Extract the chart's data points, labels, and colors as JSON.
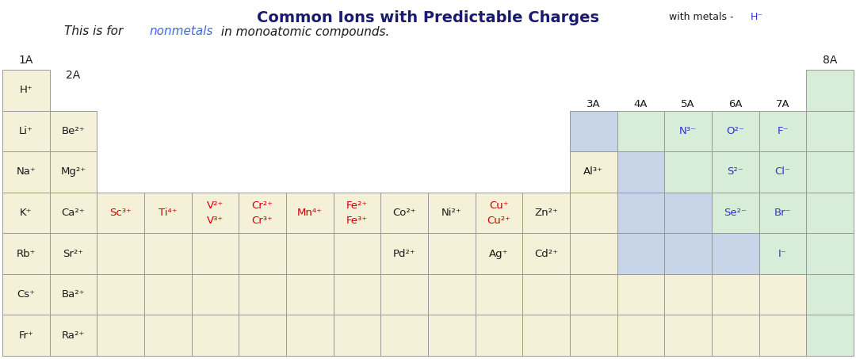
{
  "title": "Common Ions with Predictable Charges",
  "bg_color": "#ffffff",
  "cell_tan": "#F5F0D8",
  "cell_green": "#D8EDD8",
  "cell_blue": "#C8D4E8",
  "cell_edge": "#999999",
  "color_black": "#1a1a1a",
  "color_red": "#CC0000",
  "color_blue": "#3333CC",
  "color_darkblue": "#1a1a6e",
  "color_navy": "#000080",
  "figw": 10.8,
  "figh": 4.53,
  "dpi": 100,
  "ncols": 18,
  "nrows": 8,
  "cells": [
    {
      "col": 0,
      "row": 1,
      "text": "H⁺",
      "color": "tan",
      "text_color": "black"
    },
    {
      "col": 17,
      "row": 1,
      "text": "",
      "color": "green",
      "text_color": "black"
    },
    {
      "col": 0,
      "row": 2,
      "text": "Li⁺",
      "color": "tan",
      "text_color": "black"
    },
    {
      "col": 1,
      "row": 2,
      "text": "Be²⁺",
      "color": "tan",
      "text_color": "black"
    },
    {
      "col": 12,
      "row": 2,
      "text": "",
      "color": "blue",
      "text_color": "black"
    },
    {
      "col": 13,
      "row": 2,
      "text": "",
      "color": "green",
      "text_color": "black"
    },
    {
      "col": 14,
      "row": 2,
      "text": "N³⁻",
      "color": "green",
      "text_color": "blue"
    },
    {
      "col": 15,
      "row": 2,
      "text": "O²⁻",
      "color": "green",
      "text_color": "blue"
    },
    {
      "col": 16,
      "row": 2,
      "text": "F⁻",
      "color": "green",
      "text_color": "blue"
    },
    {
      "col": 17,
      "row": 2,
      "text": "",
      "color": "green",
      "text_color": "black"
    },
    {
      "col": 0,
      "row": 3,
      "text": "Na⁺",
      "color": "tan",
      "text_color": "black"
    },
    {
      "col": 1,
      "row": 3,
      "text": "Mg²⁺",
      "color": "tan",
      "text_color": "black"
    },
    {
      "col": 12,
      "row": 3,
      "text": "Al³⁺",
      "color": "tan",
      "text_color": "black"
    },
    {
      "col": 13,
      "row": 3,
      "text": "",
      "color": "blue",
      "text_color": "black"
    },
    {
      "col": 14,
      "row": 3,
      "text": "",
      "color": "green",
      "text_color": "black"
    },
    {
      "col": 15,
      "row": 3,
      "text": "S²⁻",
      "color": "green",
      "text_color": "blue"
    },
    {
      "col": 16,
      "row": 3,
      "text": "Cl⁻",
      "color": "green",
      "text_color": "blue"
    },
    {
      "col": 17,
      "row": 3,
      "text": "",
      "color": "green",
      "text_color": "black"
    },
    {
      "col": 0,
      "row": 4,
      "text": "K⁺",
      "color": "tan",
      "text_color": "black"
    },
    {
      "col": 1,
      "row": 4,
      "text": "Ca²⁺",
      "color": "tan",
      "text_color": "black"
    },
    {
      "col": 2,
      "row": 4,
      "text": "Sc³⁺",
      "color": "tan",
      "text_color": "red"
    },
    {
      "col": 3,
      "row": 4,
      "text": "Ti⁴⁺",
      "color": "tan",
      "text_color": "red"
    },
    {
      "col": 4,
      "row": 4,
      "text": "V²⁺\nV³⁺",
      "color": "tan",
      "text_color": "red"
    },
    {
      "col": 5,
      "row": 4,
      "text": "Cr²⁺\nCr³⁺",
      "color": "tan",
      "text_color": "red"
    },
    {
      "col": 6,
      "row": 4,
      "text": "Mn⁴⁺",
      "color": "tan",
      "text_color": "red"
    },
    {
      "col": 7,
      "row": 4,
      "text": "Fe²⁺\nFe³⁺",
      "color": "tan",
      "text_color": "red"
    },
    {
      "col": 8,
      "row": 4,
      "text": "Co²⁺",
      "color": "tan",
      "text_color": "black"
    },
    {
      "col": 9,
      "row": 4,
      "text": "Ni²⁺",
      "color": "tan",
      "text_color": "black"
    },
    {
      "col": 10,
      "row": 4,
      "text": "Cu⁺\nCu²⁺",
      "color": "tan",
      "text_color": "red"
    },
    {
      "col": 11,
      "row": 4,
      "text": "Zn²⁺",
      "color": "tan",
      "text_color": "black"
    },
    {
      "col": 12,
      "row": 4,
      "text": "",
      "color": "tan",
      "text_color": "black"
    },
    {
      "col": 13,
      "row": 4,
      "text": "",
      "color": "blue",
      "text_color": "black"
    },
    {
      "col": 14,
      "row": 4,
      "text": "",
      "color": "blue",
      "text_color": "black"
    },
    {
      "col": 15,
      "row": 4,
      "text": "Se²⁻",
      "color": "green",
      "text_color": "blue"
    },
    {
      "col": 16,
      "row": 4,
      "text": "Br⁻",
      "color": "green",
      "text_color": "blue"
    },
    {
      "col": 17,
      "row": 4,
      "text": "",
      "color": "green",
      "text_color": "black"
    },
    {
      "col": 0,
      "row": 5,
      "text": "Rb⁺",
      "color": "tan",
      "text_color": "black"
    },
    {
      "col": 1,
      "row": 5,
      "text": "Sr²⁺",
      "color": "tan",
      "text_color": "black"
    },
    {
      "col": 2,
      "row": 5,
      "text": "",
      "color": "tan",
      "text_color": "black"
    },
    {
      "col": 3,
      "row": 5,
      "text": "",
      "color": "tan",
      "text_color": "black"
    },
    {
      "col": 4,
      "row": 5,
      "text": "",
      "color": "tan",
      "text_color": "black"
    },
    {
      "col": 5,
      "row": 5,
      "text": "",
      "color": "tan",
      "text_color": "black"
    },
    {
      "col": 6,
      "row": 5,
      "text": "",
      "color": "tan",
      "text_color": "black"
    },
    {
      "col": 7,
      "row": 5,
      "text": "",
      "color": "tan",
      "text_color": "black"
    },
    {
      "col": 8,
      "row": 5,
      "text": "Pd²⁺",
      "color": "tan",
      "text_color": "black"
    },
    {
      "col": 9,
      "row": 5,
      "text": "",
      "color": "tan",
      "text_color": "black"
    },
    {
      "col": 10,
      "row": 5,
      "text": "Ag⁺",
      "color": "tan",
      "text_color": "black"
    },
    {
      "col": 11,
      "row": 5,
      "text": "Cd²⁺",
      "color": "tan",
      "text_color": "black"
    },
    {
      "col": 12,
      "row": 5,
      "text": "",
      "color": "tan",
      "text_color": "black"
    },
    {
      "col": 13,
      "row": 5,
      "text": "",
      "color": "blue",
      "text_color": "black"
    },
    {
      "col": 14,
      "row": 5,
      "text": "",
      "color": "blue",
      "text_color": "black"
    },
    {
      "col": 15,
      "row": 5,
      "text": "",
      "color": "blue",
      "text_color": "black"
    },
    {
      "col": 16,
      "row": 5,
      "text": "I⁻",
      "color": "green",
      "text_color": "blue"
    },
    {
      "col": 17,
      "row": 5,
      "text": "",
      "color": "green",
      "text_color": "black"
    },
    {
      "col": 0,
      "row": 6,
      "text": "Cs⁺",
      "color": "tan",
      "text_color": "black"
    },
    {
      "col": 1,
      "row": 6,
      "text": "Ba²⁺",
      "color": "tan",
      "text_color": "black"
    },
    {
      "col": 2,
      "row": 6,
      "text": "",
      "color": "tan",
      "text_color": "black"
    },
    {
      "col": 3,
      "row": 6,
      "text": "",
      "color": "tan",
      "text_color": "black"
    },
    {
      "col": 4,
      "row": 6,
      "text": "",
      "color": "tan",
      "text_color": "black"
    },
    {
      "col": 5,
      "row": 6,
      "text": "",
      "color": "tan",
      "text_color": "black"
    },
    {
      "col": 6,
      "row": 6,
      "text": "",
      "color": "tan",
      "text_color": "black"
    },
    {
      "col": 7,
      "row": 6,
      "text": "",
      "color": "tan",
      "text_color": "black"
    },
    {
      "col": 8,
      "row": 6,
      "text": "",
      "color": "tan",
      "text_color": "black"
    },
    {
      "col": 9,
      "row": 6,
      "text": "",
      "color": "tan",
      "text_color": "black"
    },
    {
      "col": 10,
      "row": 6,
      "text": "",
      "color": "tan",
      "text_color": "black"
    },
    {
      "col": 11,
      "row": 6,
      "text": "",
      "color": "tan",
      "text_color": "black"
    },
    {
      "col": 12,
      "row": 6,
      "text": "",
      "color": "tan",
      "text_color": "black"
    },
    {
      "col": 13,
      "row": 6,
      "text": "",
      "color": "tan",
      "text_color": "black"
    },
    {
      "col": 14,
      "row": 6,
      "text": "",
      "color": "tan",
      "text_color": "black"
    },
    {
      "col": 15,
      "row": 6,
      "text": "",
      "color": "tan",
      "text_color": "black"
    },
    {
      "col": 16,
      "row": 6,
      "text": "",
      "color": "tan",
      "text_color": "black"
    },
    {
      "col": 17,
      "row": 6,
      "text": "",
      "color": "green",
      "text_color": "black"
    },
    {
      "col": 0,
      "row": 7,
      "text": "Fr⁺",
      "color": "tan",
      "text_color": "black"
    },
    {
      "col": 1,
      "row": 7,
      "text": "Ra²⁺",
      "color": "tan",
      "text_color": "black"
    },
    {
      "col": 2,
      "row": 7,
      "text": "",
      "color": "tan",
      "text_color": "black"
    },
    {
      "col": 3,
      "row": 7,
      "text": "",
      "color": "tan",
      "text_color": "black"
    },
    {
      "col": 4,
      "row": 7,
      "text": "",
      "color": "tan",
      "text_color": "black"
    },
    {
      "col": 5,
      "row": 7,
      "text": "",
      "color": "tan",
      "text_color": "black"
    },
    {
      "col": 6,
      "row": 7,
      "text": "",
      "color": "tan",
      "text_color": "black"
    },
    {
      "col": 7,
      "row": 7,
      "text": "",
      "color": "tan",
      "text_color": "black"
    },
    {
      "col": 8,
      "row": 7,
      "text": "",
      "color": "tan",
      "text_color": "black"
    },
    {
      "col": 9,
      "row": 7,
      "text": "",
      "color": "tan",
      "text_color": "black"
    },
    {
      "col": 10,
      "row": 7,
      "text": "",
      "color": "tan",
      "text_color": "black"
    },
    {
      "col": 11,
      "row": 7,
      "text": "",
      "color": "tan",
      "text_color": "black"
    },
    {
      "col": 12,
      "row": 7,
      "text": "",
      "color": "tan",
      "text_color": "black"
    },
    {
      "col": 13,
      "row": 7,
      "text": "",
      "color": "tan",
      "text_color": "black"
    },
    {
      "col": 14,
      "row": 7,
      "text": "",
      "color": "tan",
      "text_color": "black"
    },
    {
      "col": 15,
      "row": 7,
      "text": "",
      "color": "tan",
      "text_color": "black"
    },
    {
      "col": 16,
      "row": 7,
      "text": "",
      "color": "tan",
      "text_color": "black"
    },
    {
      "col": 17,
      "row": 7,
      "text": "",
      "color": "green",
      "text_color": "black"
    }
  ],
  "group_labels_top": [
    {
      "label": "1A",
      "col": 0
    },
    {
      "label": "8A",
      "col": 17
    }
  ],
  "group_labels_mid": [
    {
      "label": "2A",
      "col": 1
    },
    {
      "label": "3A",
      "col": 12
    },
    {
      "label": "4A",
      "col": 13
    },
    {
      "label": "5A",
      "col": 14
    },
    {
      "label": "6A",
      "col": 15
    },
    {
      "label": "7A",
      "col": 16
    }
  ]
}
